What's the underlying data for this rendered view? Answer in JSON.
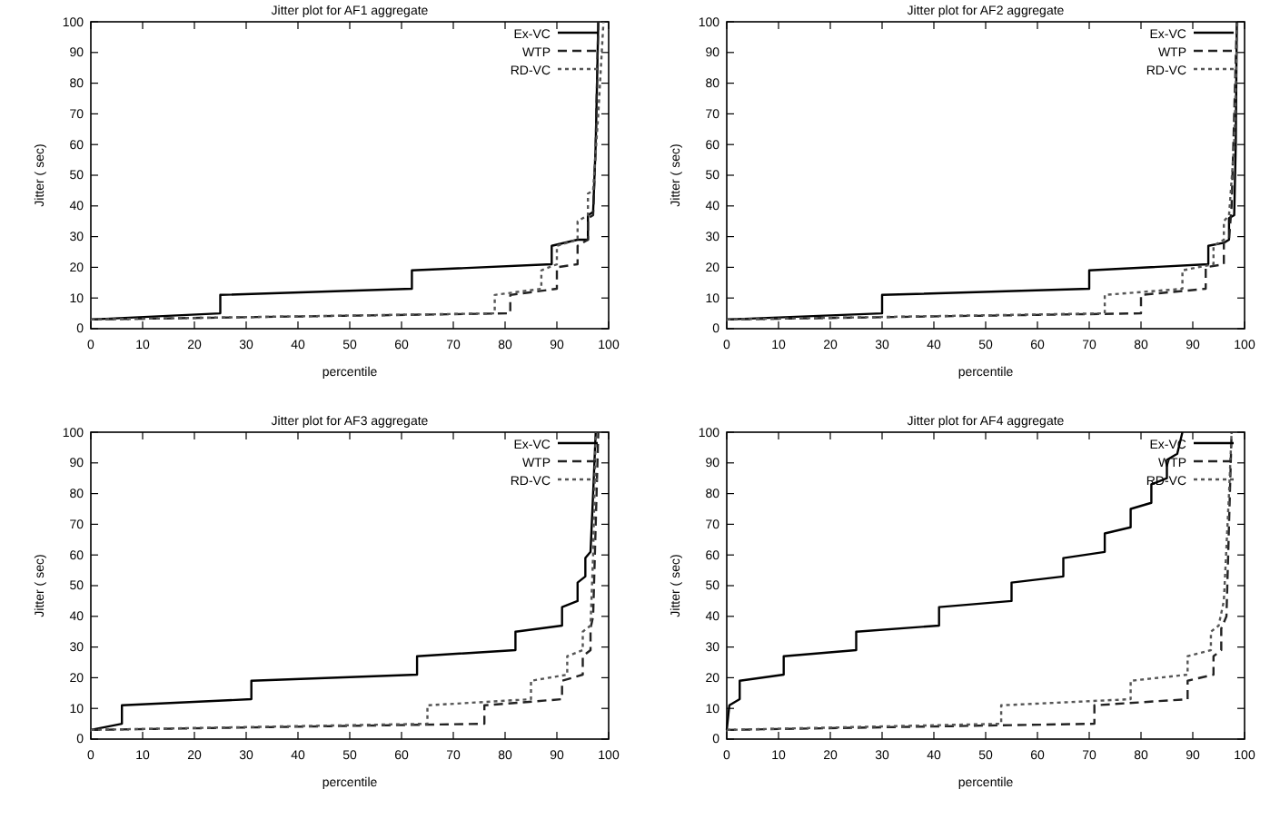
{
  "chart_data": [
    {
      "type": "line",
      "title": "Jitter plot for AF1 aggregate",
      "xlabel": "percentile",
      "ylabel": "Jitter (  sec)",
      "xlim": [
        0,
        100
      ],
      "ylim": [
        0,
        100
      ],
      "xticks": [
        0,
        10,
        20,
        30,
        40,
        50,
        60,
        70,
        80,
        90,
        100
      ],
      "yticks": [
        0,
        10,
        20,
        30,
        40,
        50,
        60,
        70,
        80,
        90,
        100
      ],
      "legend": "top right",
      "series": [
        {
          "name": "Ex-VC",
          "color": "#000000",
          "line_style": "solid",
          "x": [
            0,
            25,
            25,
            62,
            62,
            89,
            89,
            94,
            96,
            96,
            97,
            97.5,
            98
          ],
          "values": [
            3,
            5,
            11,
            13,
            19,
            21,
            27,
            29,
            29,
            37,
            38,
            60,
            100
          ]
        },
        {
          "name": "WTP",
          "color": "#222222",
          "line_style": "dashed",
          "x": [
            0,
            81,
            81,
            90,
            90,
            94,
            94,
            96,
            96,
            97,
            97.5,
            98
          ],
          "values": [
            3,
            5,
            11,
            13,
            20,
            21,
            27,
            29,
            36,
            37,
            60,
            100
          ]
        },
        {
          "name": "RD-VC",
          "color": "#555555",
          "line_style": "dotted",
          "x": [
            0,
            78,
            78,
            87,
            87,
            90,
            90,
            94,
            94,
            96,
            96,
            97,
            98,
            99
          ],
          "values": [
            3,
            5,
            11,
            13,
            19,
            21,
            27,
            29,
            35,
            37,
            44,
            45,
            70,
            100
          ]
        }
      ]
    },
    {
      "type": "line",
      "title": "Jitter plot for AF2 aggregate",
      "xlabel": "percentile",
      "ylabel": "Jitter (  sec)",
      "xlim": [
        0,
        100
      ],
      "ylim": [
        0,
        100
      ],
      "xticks": [
        0,
        10,
        20,
        30,
        40,
        50,
        60,
        70,
        80,
        90,
        100
      ],
      "yticks": [
        0,
        10,
        20,
        30,
        40,
        50,
        60,
        70,
        80,
        90,
        100
      ],
      "legend": "top right",
      "series": [
        {
          "name": "Ex-VC",
          "color": "#000000",
          "line_style": "solid",
          "x": [
            0,
            30,
            30,
            70,
            70,
            93,
            93,
            96,
            97,
            97,
            98,
            98.3,
            98.5
          ],
          "values": [
            3,
            5,
            11,
            13,
            19,
            21,
            27,
            28,
            29,
            36,
            37,
            60,
            100
          ]
        },
        {
          "name": "WTP",
          "color": "#222222",
          "line_style": "dashed",
          "x": [
            0,
            80,
            80,
            92.5,
            92.5,
            96,
            96,
            97,
            97.5,
            98,
            98.5
          ],
          "values": [
            3,
            5,
            11,
            13,
            20,
            21,
            28,
            29,
            40,
            70,
            100
          ]
        },
        {
          "name": "RD-VC",
          "color": "#555555",
          "line_style": "dotted",
          "x": [
            0,
            73,
            73,
            88,
            88,
            94,
            94,
            96,
            96,
            97,
            98,
            98.6
          ],
          "values": [
            3,
            5,
            11,
            13,
            19,
            21,
            27,
            29,
            35,
            37,
            60,
            100
          ]
        }
      ]
    },
    {
      "type": "line",
      "title": "Jitter plot for AF3 aggregate",
      "xlabel": "percentile",
      "ylabel": "Jitter (  sec)",
      "xlim": [
        0,
        100
      ],
      "ylim": [
        0,
        100
      ],
      "xticks": [
        0,
        10,
        20,
        30,
        40,
        50,
        60,
        70,
        80,
        90,
        100
      ],
      "yticks": [
        0,
        10,
        20,
        30,
        40,
        50,
        60,
        70,
        80,
        90,
        100
      ],
      "legend": "top right",
      "series": [
        {
          "name": "Ex-VC",
          "color": "#000000",
          "line_style": "solid",
          "x": [
            0,
            6,
            6,
            31,
            31,
            63,
            63,
            82,
            82,
            91,
            91,
            94,
            94,
            95.5,
            95.5,
            96.5,
            97,
            97.5
          ],
          "values": [
            3,
            5,
            11,
            13,
            19,
            21,
            27,
            29,
            35,
            37,
            43,
            45,
            51,
            53,
            59,
            61,
            80,
            100
          ]
        },
        {
          "name": "WTP",
          "color": "#222222",
          "line_style": "dashed",
          "x": [
            0,
            76,
            76,
            91,
            91,
            95,
            95,
            96.5,
            96.5,
            97,
            97.5,
            98
          ],
          "values": [
            3,
            5,
            11,
            13,
            19,
            21,
            27,
            29,
            36,
            40,
            70,
            100
          ]
        },
        {
          "name": "RD-VC",
          "color": "#555555",
          "line_style": "dotted",
          "x": [
            0,
            65,
            65,
            85,
            85,
            92,
            92,
            95,
            95,
            96.5,
            97,
            97.5
          ],
          "values": [
            3,
            5,
            11,
            13,
            19,
            21,
            27,
            29,
            35,
            37,
            60,
            100
          ]
        }
      ]
    },
    {
      "type": "line",
      "title": "Jitter plot for AF4 aggregate",
      "xlabel": "percentile",
      "ylabel": "Jitter (  sec)",
      "xlim": [
        0,
        100
      ],
      "ylim": [
        0,
        100
      ],
      "xticks": [
        0,
        10,
        20,
        30,
        40,
        50,
        60,
        70,
        80,
        90,
        100
      ],
      "yticks": [
        0,
        10,
        20,
        30,
        40,
        50,
        60,
        70,
        80,
        90,
        100
      ],
      "legend": "top right",
      "series": [
        {
          "name": "Ex-VC",
          "color": "#000000",
          "line_style": "solid",
          "x": [
            0,
            0.5,
            2.5,
            2.5,
            11,
            11,
            25,
            25,
            41,
            41,
            55,
            55,
            65,
            65,
            73,
            73,
            78,
            78,
            82,
            82,
            85,
            85,
            87,
            88
          ],
          "values": [
            3,
            11,
            13,
            19,
            21,
            27,
            29,
            35,
            37,
            43,
            45,
            51,
            53,
            59,
            61,
            67,
            69,
            75,
            77,
            83,
            85,
            91,
            93,
            100
          ]
        },
        {
          "name": "WTP",
          "color": "#222222",
          "line_style": "dashed",
          "x": [
            0,
            71,
            71,
            89,
            89,
            94,
            94,
            95.5,
            95.5,
            96.5,
            97,
            97.5
          ],
          "values": [
            3,
            5,
            11,
            13,
            19,
            21,
            27,
            29,
            36,
            40,
            70,
            100
          ]
        },
        {
          "name": "RD-VC",
          "color": "#555555",
          "line_style": "dotted",
          "x": [
            0,
            53,
            53,
            78,
            78,
            89,
            89,
            93.5,
            93.5,
            95,
            96,
            97,
            97.5
          ],
          "values": [
            3,
            5,
            11,
            13,
            19,
            21,
            27,
            29,
            35,
            37,
            45,
            80,
            100
          ]
        }
      ]
    }
  ]
}
